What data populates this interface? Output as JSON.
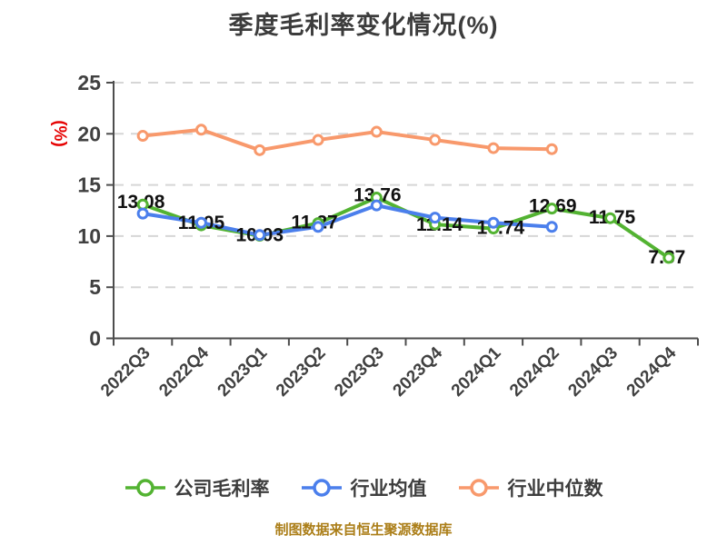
{
  "chart_data": {
    "type": "line",
    "title": "季度毛利率变化情况(%)",
    "y_axis_name": "(%)",
    "caption": "制图数据来自恒生聚源数据库",
    "categories": [
      "2022Q3",
      "2022Q4",
      "2023Q1",
      "2023Q2",
      "2023Q3",
      "2023Q4",
      "2024Q1",
      "2024Q2",
      "2024Q3",
      "2024Q4"
    ],
    "y_ticks": [
      0,
      5,
      10,
      15,
      20,
      25
    ],
    "ylim": [
      0,
      25
    ],
    "grid": "horizontal-dashed",
    "legend_position": "bottom",
    "series": [
      {
        "name": "公司毛利率",
        "color": "#53b332",
        "values": [
          13.08,
          11.05,
          10.03,
          11.27,
          13.76,
          11.14,
          10.74,
          12.69,
          11.75,
          7.87
        ],
        "show_labels": true
      },
      {
        "name": "行业均值",
        "color": "#4b7fec",
        "values": [
          12.2,
          11.3,
          10.1,
          10.9,
          13.0,
          11.8,
          11.3,
          10.9
        ],
        "show_labels": false
      },
      {
        "name": "行业中位数",
        "color": "#f8996c",
        "values": [
          19.8,
          20.4,
          18.4,
          19.4,
          20.2,
          19.4,
          18.6,
          18.5
        ],
        "show_labels": false
      }
    ],
    "colors": {
      "title": "#3c3c3c",
      "axis_label": "#404040",
      "data_label": "#111111",
      "y_axis_name": "#e60202",
      "caption": "#ab7e18",
      "gridline": "#d6d6d6",
      "axis_line": "#4d4d4d"
    }
  }
}
